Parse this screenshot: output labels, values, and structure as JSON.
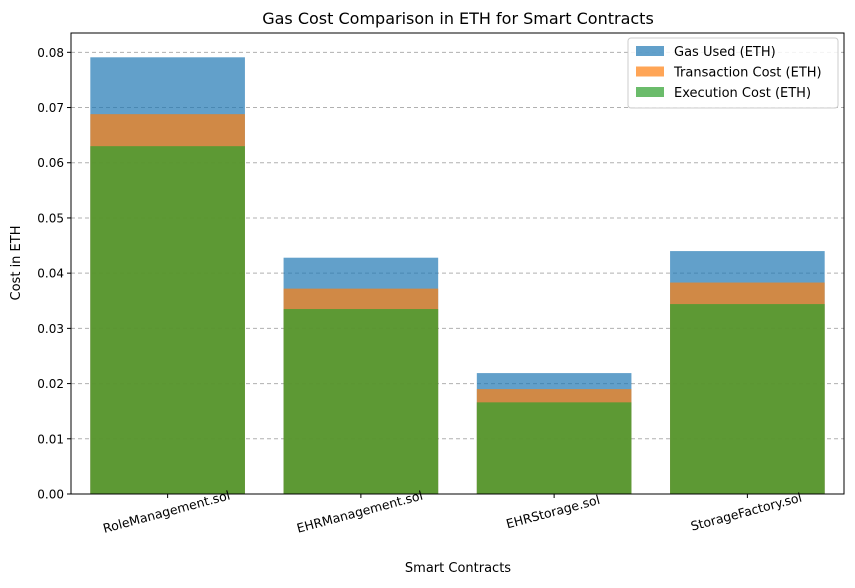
{
  "chart_data": {
    "type": "bar",
    "title": "Gas Cost Comparison in ETH for Smart Contracts",
    "xlabel": "Smart Contracts",
    "ylabel": "Cost in ETH",
    "categories": [
      "RoleManagement.sol",
      "EHRManagement.sol",
      "EHRStorage.sol",
      "StorageFactory.sol"
    ],
    "series": [
      {
        "name": "Gas Used (ETH)",
        "color": "#1f77b4",
        "values": [
          0.0791,
          0.0428,
          0.0219,
          0.044
        ]
      },
      {
        "name": "Transaction Cost (ETH)",
        "color": "#ff7f0e",
        "values": [
          0.0688,
          0.0372,
          0.019,
          0.0383
        ]
      },
      {
        "name": "Execution Cost (ETH)",
        "color": "#2ca02c",
        "values": [
          0.063,
          0.0335,
          0.0166,
          0.0344
        ]
      }
    ],
    "ylim": [
      0,
      0.0835
    ],
    "yticks": [
      "0.00",
      "0.01",
      "0.02",
      "0.03",
      "0.04",
      "0.05",
      "0.06",
      "0.07",
      "0.08"
    ],
    "ytick_values": [
      0,
      0.01,
      0.02,
      0.03,
      0.04,
      0.05,
      0.06,
      0.07,
      0.08
    ],
    "grid": "y-dashed",
    "legend": "top-right",
    "bar_alpha": 0.7
  }
}
